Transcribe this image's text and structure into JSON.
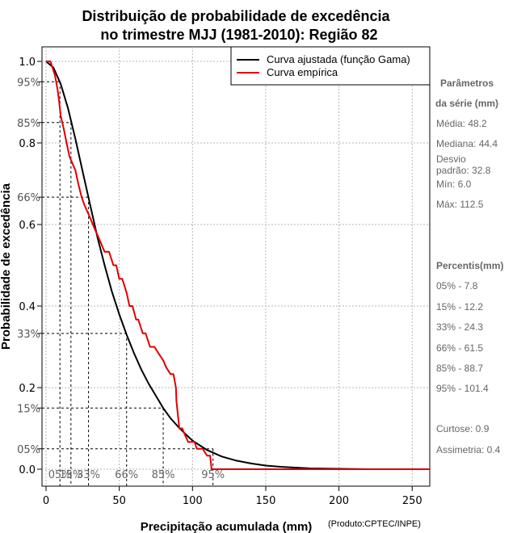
{
  "chart_data": {
    "type": "line",
    "title_line1": "Distribuição de probabilidade de excedência",
    "title_line2": "no trimestre MJJ (1981-2010): Região 82",
    "xlabel": "Precipitação acumulada (mm)",
    "ylabel": "Probabilidade de excedência",
    "credit": "(Produto:CPTEC/INPE)",
    "xlim": [
      0,
      262
    ],
    "ylim": [
      0,
      1
    ],
    "x_ticks": [
      0,
      50,
      100,
      150,
      200,
      250
    ],
    "y_ticks": [
      0.0,
      0.2,
      0.4,
      0.6,
      0.8,
      1.0
    ],
    "y_tick_labels": [
      "0.0",
      "0.2",
      "0.4",
      "0.6",
      "0.8",
      "1.0"
    ],
    "grid": true,
    "legend": {
      "position": "top-right",
      "entries": [
        {
          "label": "Curva ajustada (função Gama)",
          "color": "#000000"
        },
        {
          "label": "Curva empírica",
          "color": "#dd0000"
        }
      ]
    },
    "series": [
      {
        "name": "Curva ajustada (função Gama)",
        "color": "#000000",
        "x": [
          0,
          5,
          10,
          15,
          20,
          25,
          30,
          35,
          40,
          45,
          50,
          55,
          60,
          65,
          70,
          75,
          80,
          85,
          90,
          95,
          100,
          110,
          120,
          130,
          140,
          150,
          160,
          170,
          180,
          200,
          220,
          234
        ],
        "y": [
          1.0,
          0.985,
          0.945,
          0.885,
          0.81,
          0.73,
          0.65,
          0.57,
          0.5,
          0.435,
          0.38,
          0.33,
          0.285,
          0.245,
          0.21,
          0.18,
          0.15,
          0.125,
          0.105,
          0.087,
          0.07,
          0.047,
          0.031,
          0.021,
          0.014,
          0.009,
          0.006,
          0.004,
          0.002,
          0.001,
          0.0,
          0.0
        ]
      },
      {
        "name": "Curva empírica",
        "color": "#dd0000",
        "x": [
          0,
          3,
          6,
          7.8,
          9,
          10,
          12.2,
          14,
          16,
          18,
          20,
          22,
          24.3,
          26,
          28,
          30,
          32,
          34,
          36,
          38,
          40,
          43,
          46,
          48,
          50,
          52,
          55,
          57,
          59,
          61.5,
          63,
          66,
          68,
          71,
          74,
          77,
          80,
          82,
          85,
          87,
          88.7,
          89,
          91,
          93,
          95,
          97,
          99,
          101.4,
          103,
          107,
          110,
          112,
          113,
          118,
          130,
          150,
          180,
          220,
          262
        ],
        "y": [
          1.0,
          1.0,
          0.967,
          0.933,
          0.9,
          0.867,
          0.833,
          0.8,
          0.767,
          0.75,
          0.733,
          0.7,
          0.667,
          0.65,
          0.633,
          0.617,
          0.6,
          0.583,
          0.567,
          0.55,
          0.533,
          0.533,
          0.5,
          0.5,
          0.467,
          0.467,
          0.433,
          0.4,
          0.4,
          0.367,
          0.367,
          0.333,
          0.333,
          0.3,
          0.3,
          0.283,
          0.267,
          0.25,
          0.233,
          0.233,
          0.2,
          0.167,
          0.1,
          0.1,
          0.083,
          0.067,
          0.067,
          0.067,
          0.05,
          0.05,
          0.033,
          0.033,
          0.0,
          0.0,
          0.0,
          0.0,
          0.0,
          0.0,
          0.0
        ]
      }
    ],
    "percentile_markers": [
      {
        "pct_label": "05%",
        "prob": 0.95,
        "value": 9.5
      },
      {
        "pct_label": "15%",
        "prob": 0.85,
        "value": 17
      },
      {
        "pct_label": "33%",
        "prob": 0.667,
        "value": 29
      },
      {
        "pct_label": "66%",
        "prob": 0.333,
        "value": 55
      },
      {
        "pct_label": "85%",
        "prob": 0.15,
        "value": 80
      },
      {
        "pct_label": "95%",
        "prob": 0.05,
        "value": 114
      }
    ],
    "y_pct_labels": [
      "95%",
      "85%",
      "66%",
      "33%",
      "15%",
      "05%"
    ]
  },
  "side_panel": {
    "params_heading_1": "Parâmetros",
    "params_heading_2": "da série (mm)",
    "params": [
      "Média: 48.2",
      "Mediana: 44.4",
      "Desvio",
      "padrão: 32.8",
      "Mín: 6.0",
      "Máx: 112.5"
    ],
    "percentis_heading": "Percentis(mm)",
    "percentis": [
      "05% - 7.8",
      "15% - 12.2",
      "33% - 24.3",
      "66% - 61.5",
      "85% - 88.7",
      "95% - 101.4"
    ],
    "stats": [
      "Curtose: 0.9",
      "Assimetria: 0.4"
    ]
  }
}
